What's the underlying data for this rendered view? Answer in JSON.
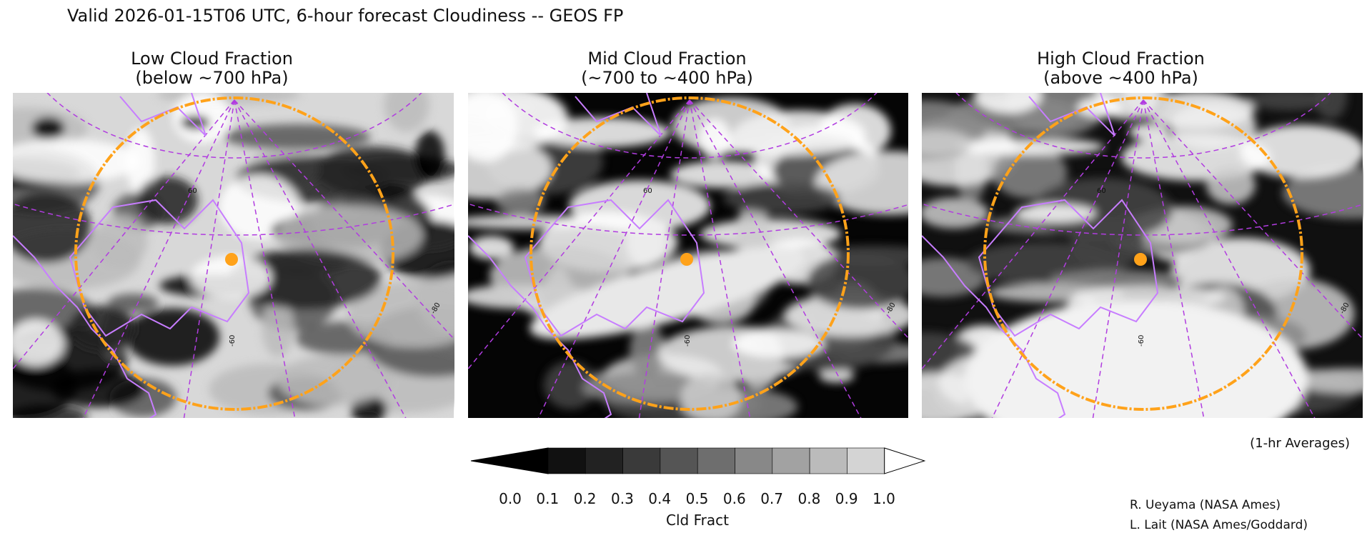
{
  "header": {
    "title": "Valid 2026-01-15T06 UTC, 6-hour forecast Cloudiness -- GEOS FP"
  },
  "panels": [
    {
      "title": [
        "Low Cloud Fraction",
        "(below ~700 hPa)"
      ],
      "grid_labels": [
        "60",
        "-60",
        "-80"
      ]
    },
    {
      "title": [
        "Mid Cloud Fraction",
        "(~700 to ~400 hPa)"
      ],
      "grid_labels": [
        "60",
        "-60",
        "-80"
      ]
    },
    {
      "title": [
        "High Cloud Fraction",
        "(above ~400 hPa)"
      ],
      "grid_labels": [
        "60",
        "-60",
        "-80"
      ]
    }
  ],
  "colorbar": {
    "label": "Cld Fract",
    "colors": [
      "#000000",
      "#111111",
      "#222222",
      "#3a3a3a",
      "#555555",
      "#6e6e6e",
      "#888888",
      "#a2a2a2",
      "#bbbbbb",
      "#d4d4d4",
      "#ffffff"
    ],
    "ticks": [
      {
        "value": 0,
        "label": "0.0"
      },
      {
        "value": 0.1,
        "label": "0.1"
      },
      {
        "value": 0.2,
        "label": "0.2"
      },
      {
        "value": 0.3,
        "label": "0.3"
      },
      {
        "value": 0.4,
        "label": "0.4"
      },
      {
        "value": 0.5,
        "label": "0.5"
      },
      {
        "value": 0.6,
        "label": "0.6"
      },
      {
        "value": 0.7,
        "label": "0.7"
      },
      {
        "value": 0.8,
        "label": "0.8"
      },
      {
        "value": 0.9,
        "label": "0.9"
      },
      {
        "value": 1,
        "label": "1.0"
      }
    ]
  },
  "note": "(1-hr Averages)",
  "credits": [
    "R. Ueyama (NASA Ames)",
    "L. Lait (NASA Ames/Goddard)"
  ]
}
